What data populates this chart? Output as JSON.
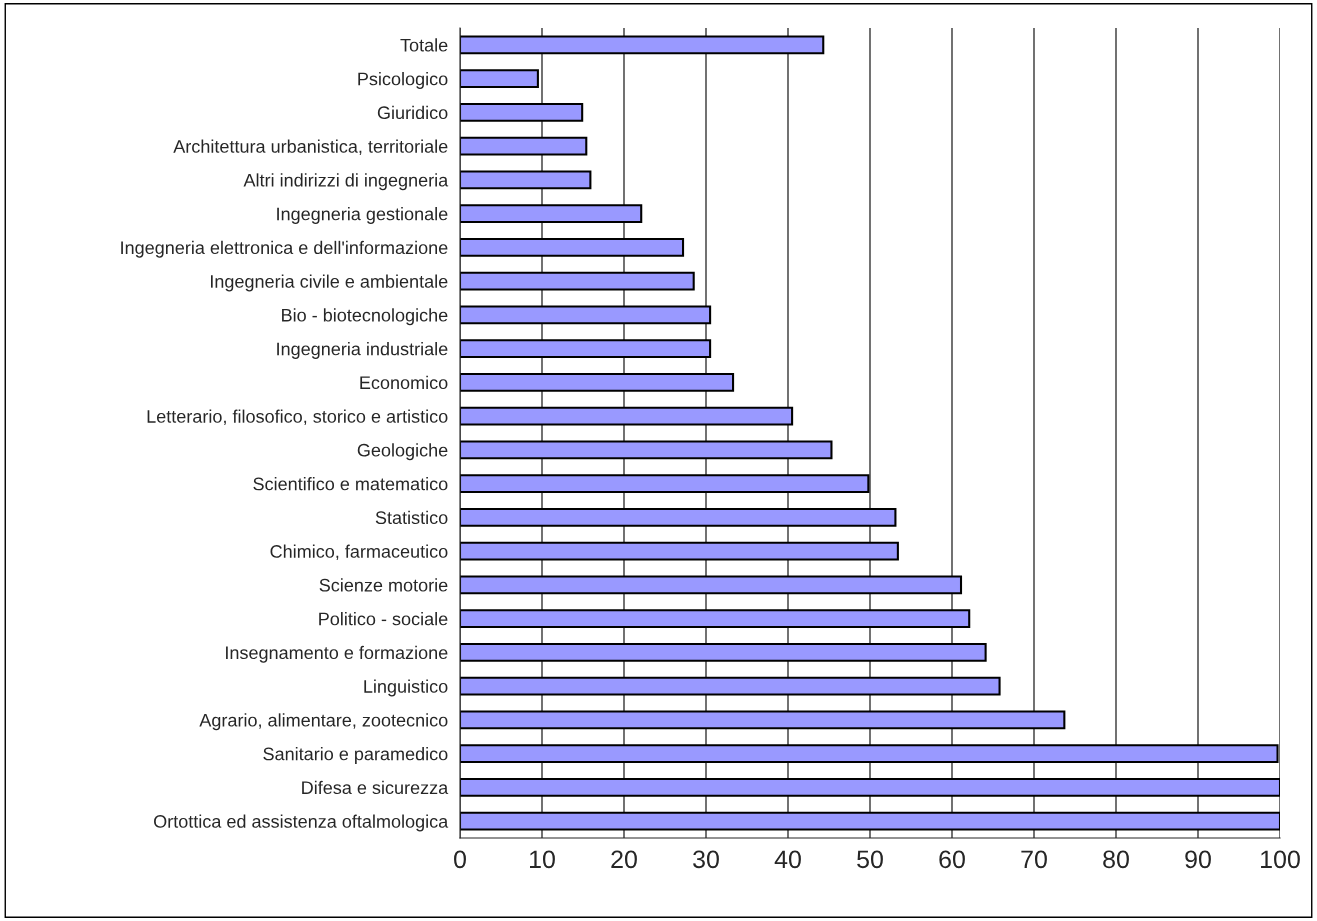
{
  "chart_data": {
    "type": "bar",
    "orientation": "horizontal",
    "color": "#9999ff",
    "categories": [
      "Totale",
      "Psicologico",
      "Giuridico",
      "Architettura urbanistica, territoriale",
      "Altri indirizzi di ingegneria",
      "Ingegneria gestionale",
      "Ingegneria elettronica e dell'informazione",
      "Ingegneria civile e ambientale",
      "Bio - biotecnologiche",
      "Ingegneria industriale",
      "Economico",
      "Letterario, filosofico, storico e artistico",
      "Geologiche",
      "Scientifico e matematico",
      "Statistico",
      "Chimico, farmaceutico",
      "Scienze motorie",
      "Politico - sociale",
      "Insegnamento e formazione",
      "Linguistico",
      "Agrario, alimentare, zootecnico",
      "Sanitario e paramedico",
      "Difesa e sicurezza",
      "Ortottica ed assistenza oftalmologica"
    ],
    "values": [
      44.3,
      9.5,
      14.9,
      15.4,
      15.9,
      22.1,
      27.2,
      28.5,
      30.5,
      30.5,
      33.3,
      40.5,
      45.3,
      49.8,
      53.1,
      53.4,
      61.1,
      62.1,
      64.1,
      65.8,
      73.7,
      99.7,
      100,
      100
    ],
    "xlim": [
      0,
      100
    ],
    "xticks": [
      0,
      10,
      20,
      30,
      40,
      50,
      60,
      70,
      80,
      90,
      100
    ],
    "grid": "x",
    "legend": false
  }
}
